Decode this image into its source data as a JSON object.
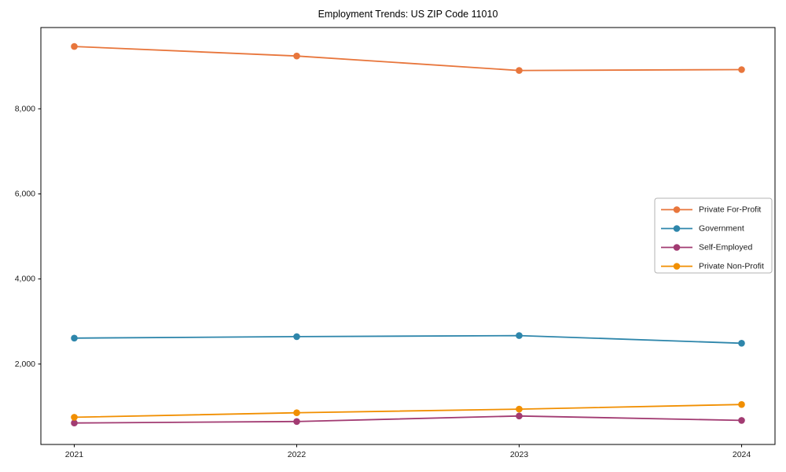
{
  "figure": {
    "background_color": "#ffffff",
    "axis_color": "#000000",
    "tick_label_color": "#1a1a1a"
  },
  "chart_data": {
    "type": "line",
    "title": "Employment Trends: US ZIP Code 11010",
    "xlabel": "",
    "ylabel": "",
    "x": [
      2021,
      2022,
      2023,
      2024
    ],
    "x_tick_labels": [
      "2021",
      "2022",
      "2023",
      "2024"
    ],
    "y_ticks": [
      {
        "value": 2000,
        "label": "2,000"
      },
      {
        "value": 4000,
        "label": "4,000"
      },
      {
        "value": 6000,
        "label": "6,000"
      },
      {
        "value": 8000,
        "label": "8,000"
      }
    ],
    "xlim": [
      2020.85,
      2024.15
    ],
    "ylim": [
      110,
      9910
    ],
    "grid": false,
    "marker": "circle",
    "series": [
      {
        "name": "Private For-Profit",
        "color": "#E8763C",
        "values": [
          9465,
          9240,
          8900,
          8920
        ]
      },
      {
        "name": "Government",
        "color": "#2E86AB",
        "values": [
          2610,
          2645,
          2670,
          2490
        ]
      },
      {
        "name": "Self-Employed",
        "color": "#A23B72",
        "values": [
          615,
          650,
          780,
          675
        ]
      },
      {
        "name": "Private Non-Profit",
        "color": "#F18F01",
        "values": [
          750,
          855,
          940,
          1050
        ]
      }
    ],
    "legend": {
      "position": "right-center",
      "background": "#ffffff",
      "border_color": "#b3b3b3",
      "entries": [
        "Private For-Profit",
        "Government",
        "Self-Employed",
        "Private Non-Profit"
      ]
    }
  }
}
